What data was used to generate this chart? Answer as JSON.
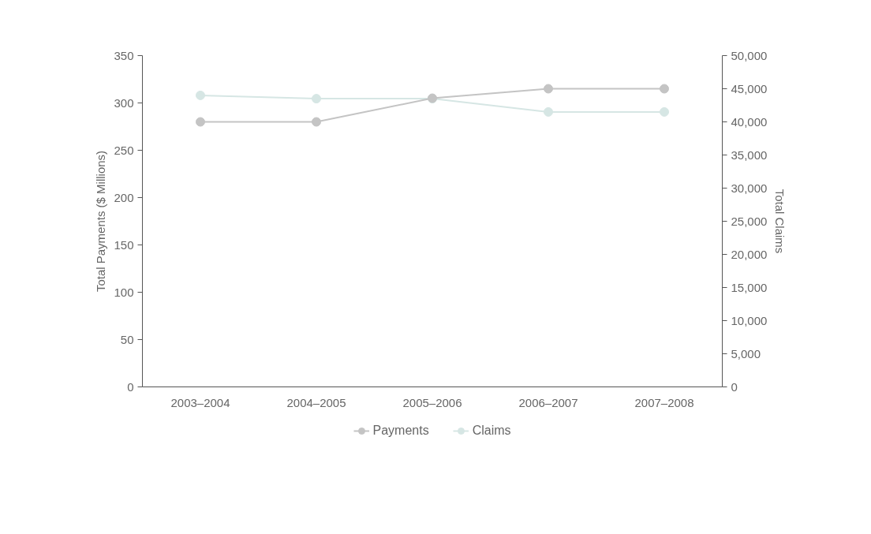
{
  "chart_data": {
    "type": "line",
    "categories": [
      "2003–2004",
      "2004–2005",
      "2005–2006",
      "2006–2007",
      "2007–2008"
    ],
    "ylabel": "Total Payments ($ Millions)",
    "y2label": "Total Claims",
    "ylim": [
      0,
      350
    ],
    "yticks": [
      0,
      50,
      100,
      150,
      200,
      250,
      300,
      350
    ],
    "y2lim": [
      0,
      50000
    ],
    "y2ticks": [
      {
        "value": 0,
        "label": "0"
      },
      {
        "value": 5000,
        "label": "5,000"
      },
      {
        "value": 10000,
        "label": "10,000"
      },
      {
        "value": 15000,
        "label": "15,000"
      },
      {
        "value": 20000,
        "label": "20,000"
      },
      {
        "value": 25000,
        "label": "25,000"
      },
      {
        "value": 30000,
        "label": "30,000"
      },
      {
        "value": 35000,
        "label": "35,000"
      },
      {
        "value": 40000,
        "label": "40,000"
      },
      {
        "value": 45000,
        "label": "45,000"
      },
      {
        "value": 50000,
        "label": "50,000"
      }
    ],
    "series": [
      {
        "name": "Payments",
        "color": "#c4c4c4",
        "values": [
          280,
          280,
          305,
          315,
          315
        ]
      },
      {
        "name": "Claims",
        "color": "#d6e6e4",
        "axis": "y2",
        "values": [
          44000,
          43500,
          43500,
          41500,
          41500
        ]
      }
    ],
    "marker": "circle",
    "line_style": "solid",
    "grid": false,
    "legend": "bottom"
  }
}
